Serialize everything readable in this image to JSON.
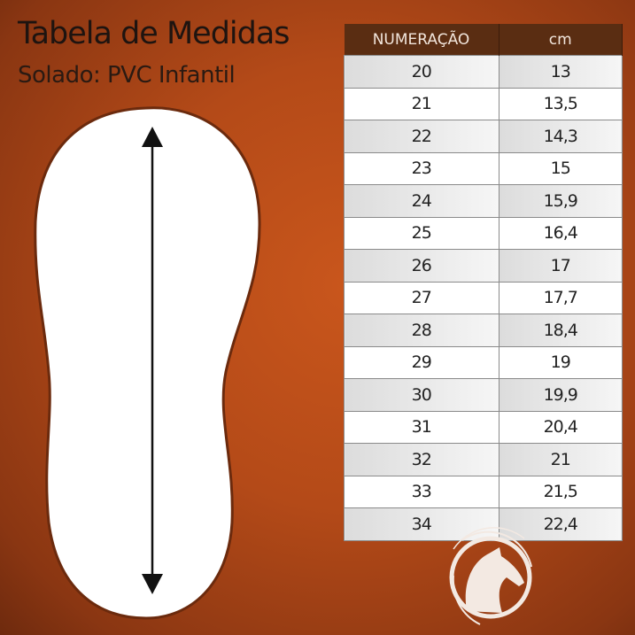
{
  "title": "Tabela de Medidas",
  "subtitle": "Solado: PVC Infantil",
  "table": {
    "headers": [
      "NUMERAÇÃO",
      "cm"
    ],
    "rows": [
      [
        "20",
        "13"
      ],
      [
        "21",
        "13,5"
      ],
      [
        "22",
        "14,3"
      ],
      [
        "23",
        "15"
      ],
      [
        "24",
        "15,9"
      ],
      [
        "25",
        "16,4"
      ],
      [
        "26",
        "17"
      ],
      [
        "27",
        "17,7"
      ],
      [
        "28",
        "18,4"
      ],
      [
        "29",
        "19"
      ],
      [
        "30",
        "19,9"
      ],
      [
        "31",
        "20,4"
      ],
      [
        "32",
        "21"
      ],
      [
        "33",
        "21,5"
      ],
      [
        "34",
        "22,4"
      ]
    ]
  },
  "colors": {
    "background": "#b44a18",
    "header": "#5a2d12",
    "sole": "#ffffff"
  },
  "icons": [
    "sole-outline-icon",
    "double-arrow-icon",
    "horse-logo-icon"
  ]
}
